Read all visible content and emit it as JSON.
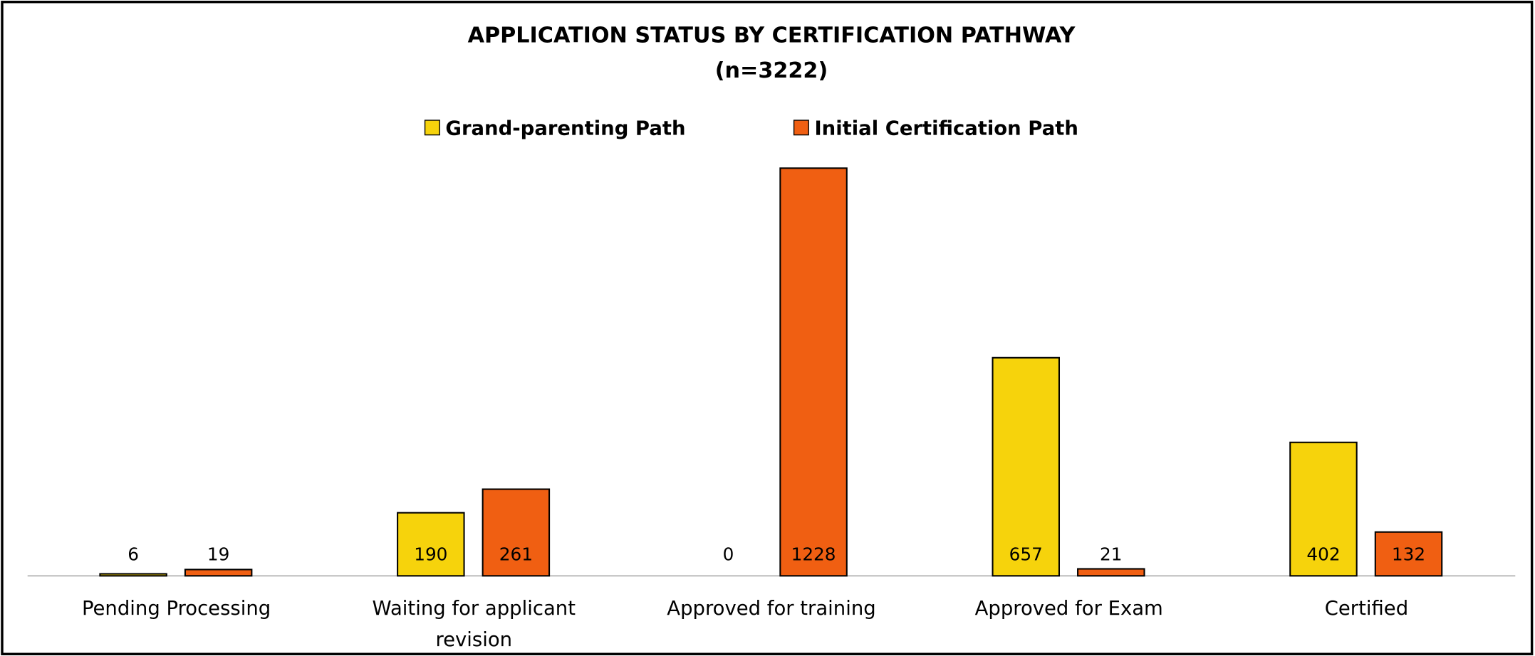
{
  "chart_data": {
    "type": "bar",
    "title": "APPLICATION STATUS BY CERTIFICATION PATHWAY",
    "subtitle": "(n=3222)",
    "categories": [
      "Pending Processing",
      "Waiting for applicant revision",
      "Approved for training",
      "Approved for Exam",
      "Certified"
    ],
    "series": [
      {
        "name": "Grand-parenting Path",
        "color": "#F6D30C",
        "values": [
          6,
          190,
          0,
          657,
          402
        ]
      },
      {
        "name": "Initial Certification Path",
        "color": "#F05F12",
        "values": [
          19,
          261,
          1228,
          21,
          132
        ]
      }
    ],
    "ylim": [
      0,
      1400
    ],
    "legend": "top"
  }
}
